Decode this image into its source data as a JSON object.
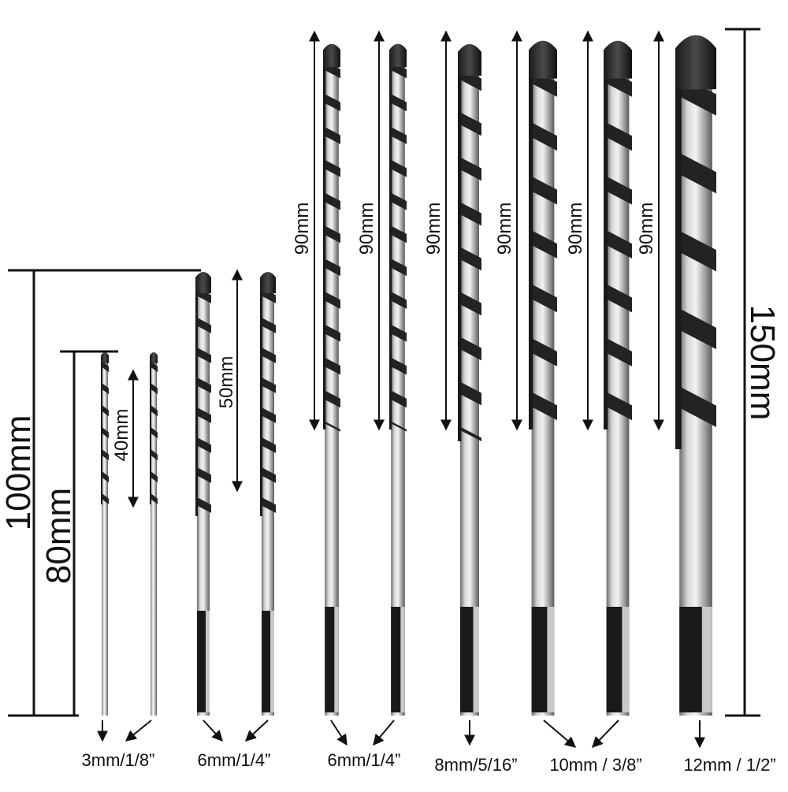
{
  "image": {
    "colors": {
      "background": "#ffffff",
      "ink": "#111111",
      "shank_light": "#e6e6e6",
      "shank_mid": "#a9a9a9",
      "shank_dark": "#6c6c6c",
      "flute_dark": "#222222",
      "hex_end": "#1a1a1a"
    },
    "dimensions": {
      "overall_100": "100mm",
      "overall_80": "80mm",
      "overall_150": "150mm",
      "flute_40": "40mm",
      "flute_50": "50mm",
      "flute_90": "90mm"
    },
    "size_labels": [
      "3mm/1/8”",
      "6mm/1/4”",
      "6mm/1/4”",
      "8mm/5/16”",
      "10mm / 3/8”",
      "12mm / 1/2”"
    ],
    "bits": [
      {
        "id": "bit-3mm-a",
        "size": "3mm"
      },
      {
        "id": "bit-3mm-b",
        "size": "3mm"
      },
      {
        "id": "bit-6mm-short-a",
        "size": "6mm"
      },
      {
        "id": "bit-6mm-short-b",
        "size": "6mm"
      },
      {
        "id": "bit-6mm-long",
        "size": "6mm"
      },
      {
        "id": "bit-6mm-long-b",
        "size": "6mm"
      },
      {
        "id": "bit-8mm",
        "size": "8mm"
      },
      {
        "id": "bit-10mm-a",
        "size": "10mm"
      },
      {
        "id": "bit-10mm-b",
        "size": "10mm"
      },
      {
        "id": "bit-12mm",
        "size": "12mm"
      }
    ]
  }
}
